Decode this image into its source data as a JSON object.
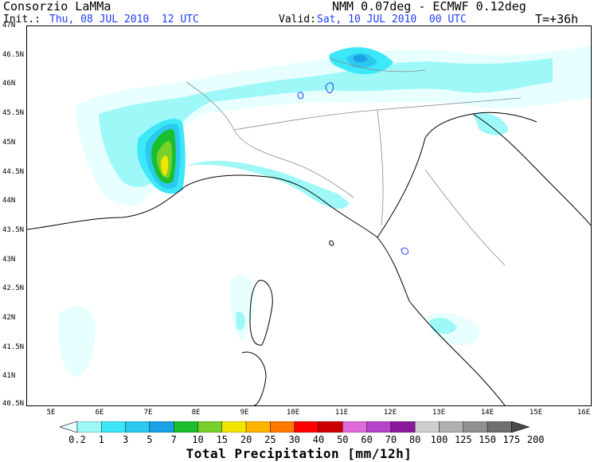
{
  "header": {
    "producer": "Consorzio LaMMa",
    "model": "NMM 0.07deg - ECMWF 0.12deg",
    "init_label": "Init.:",
    "init_value": "Thu, 08 JUL 2010  12 UTC",
    "valid_label": "Valid:",
    "valid_value": "Sat, 10 JUL 2010  00 UTC",
    "forecast_step": "T=+36h"
  },
  "map": {
    "lon_range": [
      4.5,
      16.0
    ],
    "lat_range": [
      40.5,
      47.0
    ],
    "lon_ticks": [
      "5E",
      "6E",
      "7E",
      "8E",
      "9E",
      "10E",
      "11E",
      "12E",
      "13E",
      "14E",
      "15E",
      "16E"
    ],
    "lat_ticks": [
      "47N",
      "46.5N",
      "46N",
      "45.5N",
      "45N",
      "44.5N",
      "44N",
      "43.5N",
      "43N",
      "42.5N",
      "42N",
      "41.5N",
      "41N",
      "40.5N"
    ]
  },
  "legend": {
    "title": "Total Precipitation [mm/12h]",
    "levels": [
      "0.2",
      "1",
      "3",
      "5",
      "7",
      "10",
      "15",
      "20",
      "25",
      "30",
      "40",
      "50",
      "60",
      "70",
      "80",
      "100",
      "125",
      "150",
      "175",
      "200"
    ],
    "colors": [
      "#e8ffff",
      "#9ef8f8",
      "#3ce8f8",
      "#2bc8f0",
      "#1aa0e6",
      "#1bbf2e",
      "#7ad02a",
      "#f2e600",
      "#ffb400",
      "#ff7800",
      "#ff0000",
      "#cc0000",
      "#e06ad8",
      "#b444c8",
      "#8a1a9a",
      "#cfcfcf",
      "#b0b0b0",
      "#909090",
      "#707070",
      "#4a4a4a"
    ]
  }
}
